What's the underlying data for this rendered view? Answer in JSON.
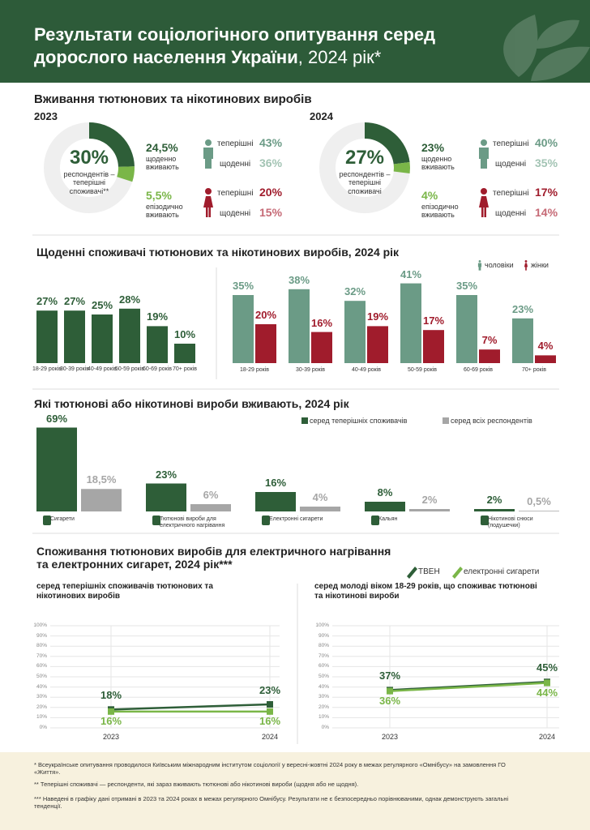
{
  "header": {
    "title_line1": "Результати соціологічного опитування серед",
    "title_line2_bold": "дорослого населення України",
    "title_line2_rest": ", 2024 рік*"
  },
  "usage": {
    "title": "Вживання тютюнових та нікотинових виробів",
    "current_text": "теперішні",
    "daily_text": "щоденні",
    "years": [
      {
        "year": "2023",
        "total": "30%",
        "total_caption": "респондентів – теперішні споживачі**",
        "daily": 24.5,
        "daily_label": "24,5%",
        "daily_caption": "щоденно вживають",
        "episodic": 5.5,
        "episodic_label": "5,5%",
        "episodic_caption": "епізодично вживають",
        "men": {
          "current": "43%",
          "daily": "36%"
        },
        "women": {
          "current": "20%",
          "daily": "15%"
        }
      },
      {
        "year": "2024",
        "total": "27%",
        "total_caption": "респондентів – теперішні споживачі",
        "daily": 23,
        "daily_label": "23%",
        "daily_caption": "щоденно вживають",
        "episodic": 4,
        "episodic_label": "4%",
        "episodic_caption": "епізодично вживають",
        "men": {
          "current": "40%",
          "daily": "35%"
        },
        "women": {
          "current": "17%",
          "daily": "14%"
        }
      }
    ]
  },
  "chart_data": [
    {
      "type": "bar",
      "title": "Щоденні споживачі тютюнових та нікотинових виробів, 2024 рік",
      "categories": [
        "18-29 років",
        "30-39 років",
        "40-49 років",
        "50-59 років",
        "60-69 років",
        "70+ років"
      ],
      "values": [
        27,
        27,
        25,
        28,
        19,
        10
      ],
      "value_labels": [
        "27%",
        "27%",
        "25%",
        "28%",
        "19%",
        "10%"
      ],
      "color": "#2e5e38"
    },
    {
      "type": "grouped_bar",
      "categories": [
        "18-29 років",
        "30-39 років",
        "40-49 років",
        "50-59 років",
        "60-69 років",
        "70+ років"
      ],
      "series": [
        {
          "name": "чоловіки",
          "color": "#6b9b86",
          "values": [
            35,
            38,
            32,
            41,
            35,
            23
          ],
          "value_labels": [
            "35%",
            "38%",
            "32%",
            "41%",
            "35%",
            "23%"
          ]
        },
        {
          "name": "жінки",
          "color": "#a01c2c",
          "values": [
            20,
            16,
            19,
            17,
            7,
            4
          ],
          "value_labels": [
            "20%",
            "16%",
            "19%",
            "17%",
            "7%",
            "4%"
          ]
        }
      ]
    },
    {
      "type": "grouped_bar",
      "title": "Які тютюнові або нікотинові вироби вживають, 2024 рік",
      "categories": [
        "Сигарети",
        "Тютюнові вироби для електричного нагрівання",
        "Електронні сигарети",
        "Кальян",
        "Нікотинові снюси (подушечки)"
      ],
      "series": [
        {
          "name": "серед теперішніх споживачів",
          "color": "#2e5e38",
          "values": [
            69,
            23,
            16,
            8,
            2
          ],
          "value_labels": [
            "69%",
            "23%",
            "16%",
            "8%",
            "2%"
          ]
        },
        {
          "name": "серед всіх респондентів",
          "color": "#a6a6a6",
          "values": [
            18.5,
            6,
            4,
            2,
            0.5
          ],
          "value_labels": [
            "18,5%",
            "6%",
            "4%",
            "2%",
            "0,5%"
          ]
        }
      ]
    },
    {
      "type": "line",
      "title": "Споживання тютюнових виробів для електричного нагрівання та електронних сигарет, 2024 рік***",
      "subtitle": "серед теперішніх споживачів тютюнових та нікотинових виробів",
      "x": [
        "2023",
        "2024"
      ],
      "ylim": [
        0,
        100
      ],
      "yticks": [
        {
          "value": 0,
          "label": "0%"
        },
        {
          "value": 10,
          "label": "10%"
        },
        {
          "value": 20,
          "label": "20%"
        },
        {
          "value": 30,
          "label": "30%"
        },
        {
          "value": 40,
          "label": "40%"
        },
        {
          "value": 50,
          "label": "50%"
        },
        {
          "value": 60,
          "label": "60%"
        },
        {
          "value": 70,
          "label": "70%"
        },
        {
          "value": 80,
          "label": "80%"
        },
        {
          "value": 90,
          "label": "90%"
        },
        {
          "value": 100,
          "label": "100%"
        }
      ],
      "grid": true,
      "series": [
        {
          "name": "ТВЕН",
          "color": "#2e5e38",
          "values": [
            18,
            23
          ],
          "value_labels": [
            "18%",
            "23%"
          ]
        },
        {
          "name": "електронні сигарети",
          "color": "#7ab648",
          "values": [
            16,
            16
          ],
          "value_labels": [
            "16%",
            "16%"
          ]
        }
      ]
    },
    {
      "type": "line",
      "subtitle": "серед молоді віком 18-29 років, що споживає тютюнові та нікотинові вироби",
      "x": [
        "2023",
        "2024"
      ],
      "ylim": [
        0,
        100
      ],
      "yticks": [
        {
          "value": 0,
          "label": "0%"
        },
        {
          "value": 10,
          "label": "10%"
        },
        {
          "value": 20,
          "label": "20%"
        },
        {
          "value": 30,
          "label": "30%"
        },
        {
          "value": 40,
          "label": "40%"
        },
        {
          "value": 50,
          "label": "50%"
        },
        {
          "value": 60,
          "label": "60%"
        },
        {
          "value": 70,
          "label": "70%"
        },
        {
          "value": 80,
          "label": "80%"
        },
        {
          "value": 90,
          "label": "90%"
        },
        {
          "value": 100,
          "label": "100%"
        }
      ],
      "grid": true,
      "series": [
        {
          "color": "#2e5e38",
          "values": [
            37,
            45
          ],
          "value_labels": [
            "37%",
            "45%"
          ]
        },
        {
          "color": "#7ab648",
          "values": [
            36,
            44
          ],
          "value_labels": [
            "36%",
            "44%"
          ]
        }
      ]
    }
  ],
  "footnotes": [
    "* Всеукраїнське опитування проводилося Київським міжнародним інститутом соціології у вересні-жовтні 2024 року в межах регулярного «Омнібусу» на замовлення ГО «Життя».",
    "** Теперішні споживачі — респонденти, які зараз вживають тютюнові або нікотинові вироби (щодня або не щодня).",
    "*** Наведені в графіку дані отримані в 2023 та 2024 роках в межах регулярного Омнібусу. Результати не є безпосередньо порівнюваними, однак демонструють загальні тенденції."
  ]
}
